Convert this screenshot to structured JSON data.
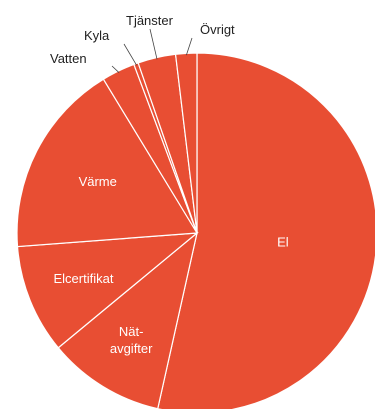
{
  "chart_data": {
    "type": "pie",
    "title": "",
    "start_angle_deg": 0,
    "direction": "clockwise",
    "slice_color": "#e84e33",
    "slices": [
      {
        "label": "El",
        "value": 53.5,
        "label_placement": "inside",
        "label_lines": [
          "El"
        ]
      },
      {
        "label": "Nät-avgifter",
        "value": 10.5,
        "label_placement": "inside",
        "label_lines": [
          "Nät-",
          "avgifter"
        ]
      },
      {
        "label": "Elcertifikat",
        "value": 9.8,
        "label_placement": "inside",
        "label_lines": [
          "Elcertifikat"
        ]
      },
      {
        "label": "Värme",
        "value": 17.5,
        "label_placement": "inside",
        "label_lines": [
          "Värme"
        ]
      },
      {
        "label": "Vatten",
        "value": 3.0,
        "label_placement": "outside",
        "label_lines": [
          "Vatten"
        ]
      },
      {
        "label": "Kyla",
        "value": 0.4,
        "label_placement": "outside",
        "label_lines": [
          "Kyla"
        ]
      },
      {
        "label": "Tjänster",
        "value": 3.4,
        "label_placement": "outside",
        "label_lines": [
          "Tjänster"
        ]
      },
      {
        "label": "Övrigt",
        "value": 1.9,
        "label_placement": "outside",
        "label_lines": [
          "Övrigt"
        ]
      }
    ]
  }
}
